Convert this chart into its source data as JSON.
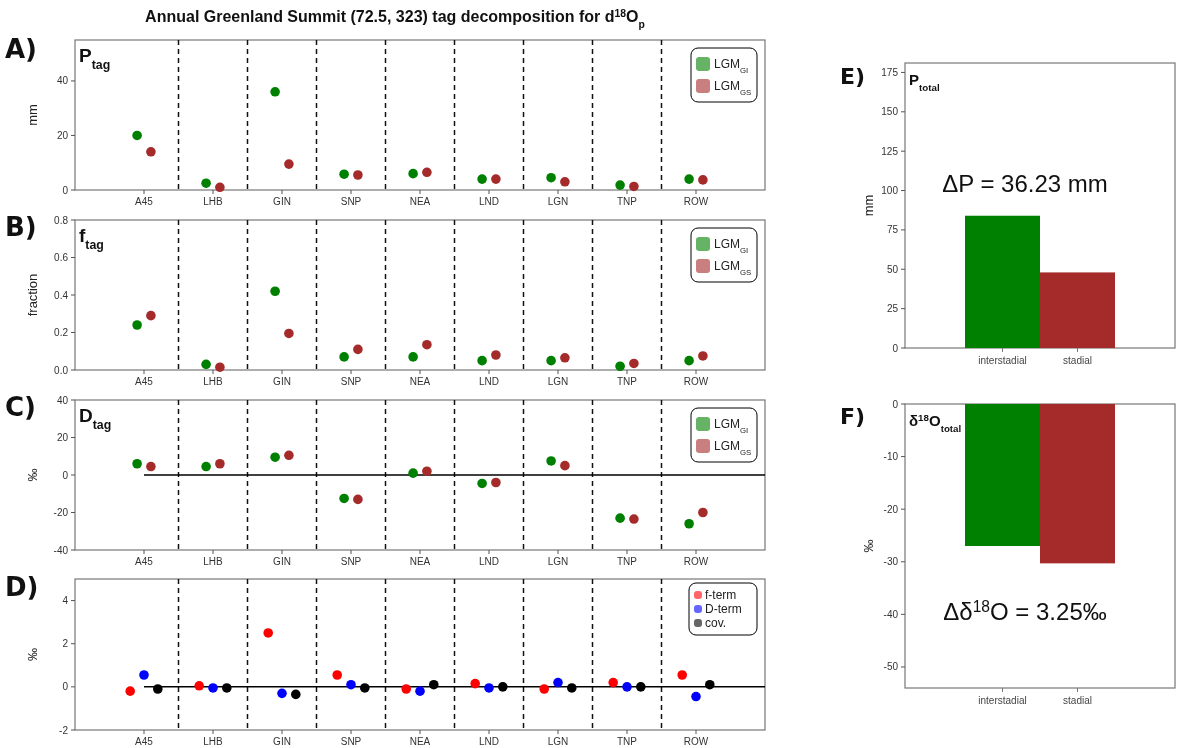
{
  "chart_data": [
    {
      "type": "scatter",
      "title": "P$_{tag}$",
      "ylabel": "mm",
      "annotations": [
        "A)",
        "Annual Greenland Summit (72.5, 323) tag decomposition for d$^{18}$O$_{p}$"
      ],
      "categories": [
        "A45",
        "LHB",
        "GIN",
        "SNP",
        "NEA",
        "LND",
        "LGN",
        "TNP",
        "ROW"
      ],
      "series": [
        {
          "name": "LGM$_{GI}$",
          "color": "#008000",
          "values": [
            20,
            2.5,
            36,
            5.8,
            6,
            4,
            4.5,
            1.8,
            4
          ]
        },
        {
          "name": "LGM$_{GS}$",
          "color": "#a52a2a",
          "values": [
            14,
            1,
            9.5,
            5.5,
            6.5,
            4,
            3,
            1.3,
            3.7
          ]
        }
      ],
      "ylim": [
        0,
        55
      ],
      "yticks": [
        0,
        20,
        40
      ],
      "marker": "circle",
      "legend": "top right",
      "grid": false
    },
    {
      "type": "scatter",
      "title": "f$_{tag}$",
      "ylabel": "fraction",
      "annotations": [
        "B)"
      ],
      "categories": [
        "A45",
        "LHB",
        "GIN",
        "SNP",
        "NEA",
        "LND",
        "LGN",
        "TNP",
        "ROW"
      ],
      "series": [
        {
          "name": "LGM$_{GI}$",
          "color": "#008000",
          "values": [
            0.24,
            0.03,
            0.42,
            0.07,
            0.07,
            0.05,
            0.05,
            0.02,
            0.05
          ]
        },
        {
          "name": "LGM$_{GS}$",
          "color": "#a52a2a",
          "values": [
            0.29,
            0.015,
            0.195,
            0.11,
            0.135,
            0.08,
            0.065,
            0.035,
            0.075
          ]
        }
      ],
      "ylim": [
        0,
        0.8
      ],
      "yticks": [
        {
          "value": 0,
          "label": "0.0"
        },
        {
          "value": 0.2,
          "label": "0.2"
        },
        {
          "value": 0.4,
          "label": "0.4"
        },
        {
          "value": 0.6,
          "label": "0.6"
        },
        {
          "value": 0.8,
          "label": "0.8"
        }
      ],
      "marker": "circle",
      "legend": "top right",
      "grid": false
    },
    {
      "type": "scatter",
      "title": "D$_{tag}$",
      "ylabel": "‰",
      "annotations": [
        "C)"
      ],
      "categories": [
        "A45",
        "LHB",
        "GIN",
        "SNP",
        "NEA",
        "LND",
        "LGN",
        "TNP",
        "ROW"
      ],
      "series": [
        {
          "name": "LGM$_{GI}$",
          "color": "#008000",
          "values": [
            6,
            4.5,
            9.5,
            -12.5,
            1,
            -4.5,
            7.5,
            -23,
            -26
          ]
        },
        {
          "name": "LGM$_{GS}$",
          "color": "#a52a2a",
          "values": [
            4.5,
            6,
            10.5,
            -13,
            2,
            -4,
            5,
            -23.5,
            -20
          ]
        }
      ],
      "ylim": [
        -40,
        40
      ],
      "yticks": [
        -40,
        -20,
        0,
        20,
        40
      ],
      "ref_lines": [
        {
          "axis": "y",
          "value": 0
        }
      ],
      "marker": "circle",
      "legend": "top right",
      "grid": false
    },
    {
      "type": "scatter",
      "ylabel": "‰",
      "annotations": [
        "D)"
      ],
      "categories": [
        "A45",
        "LHB",
        "GIN",
        "SNP",
        "NEA",
        "LND",
        "LGN",
        "TNP",
        "ROW"
      ],
      "series": [
        {
          "name": "f-term",
          "color": "#ff0000",
          "values": [
            -0.2,
            0.05,
            2.5,
            0.55,
            -0.1,
            0.15,
            -0.1,
            0.2,
            0.55
          ]
        },
        {
          "name": "D-term",
          "color": "#0000ff",
          "values": [
            0.55,
            -0.05,
            -0.3,
            0.1,
            -0.2,
            -0.05,
            0.2,
            0,
            -0.45
          ]
        },
        {
          "name": "cov.",
          "color": "#000000",
          "values": [
            -0.1,
            -0.05,
            -0.35,
            -0.05,
            0.1,
            0,
            -0.05,
            0,
            0.1
          ]
        }
      ],
      "ylim": [
        -2,
        5
      ],
      "yticks": [
        -2,
        0,
        2,
        4
      ],
      "ref_lines": [
        {
          "axis": "y",
          "value": 0
        }
      ],
      "marker": "circle",
      "legend": "top right",
      "grid": false
    },
    {
      "type": "bar",
      "title": "P$_{total}$",
      "ylabel": "mm",
      "annotations": [
        "E)",
        "ΔP = 36.23 mm"
      ],
      "categories": [
        "interstadial",
        "stadial"
      ],
      "values": [
        84,
        48
      ],
      "colors": [
        "#008000",
        "#a52a2a"
      ],
      "ylim": [
        0,
        181
      ],
      "yticks": [
        0,
        25,
        50,
        75,
        100,
        125,
        150,
        175
      ],
      "grid": false
    },
    {
      "type": "bar",
      "title": "δ$^{18}$O$_{total}$",
      "ylabel": "‰",
      "annotations": [
        "F)",
        "Δδ$^{18}$O = 3.25‰"
      ],
      "categories": [
        "interstadial",
        "stadial"
      ],
      "values": [
        -27,
        -30.3
      ],
      "colors": [
        "#008000",
        "#a52a2a"
      ],
      "ylim": [
        -54,
        0
      ],
      "yticks": [
        -50,
        -40,
        -30,
        -20,
        -10,
        0
      ],
      "grid": false
    }
  ]
}
